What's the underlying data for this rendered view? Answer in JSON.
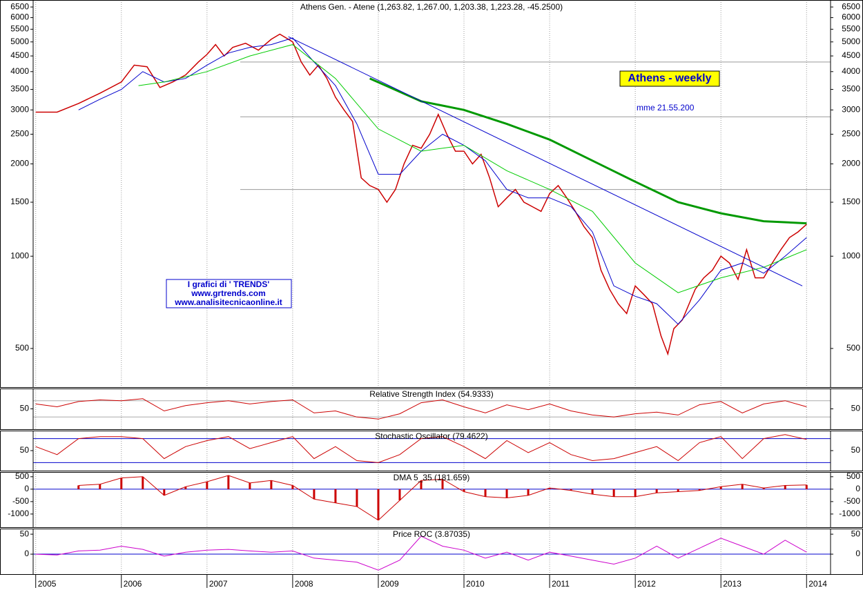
{
  "chart_data": [
    {
      "type": "line",
      "title": "Athens Gen. - Atene (1,263.82, 1,267.00, 1,203.38, 1,223.28, -45.2500)",
      "log_scale": true,
      "ylim": [
        374,
        6850
      ],
      "yticks": [
        500,
        1000,
        1500,
        2000,
        2500,
        3000,
        3500,
        4000,
        4500,
        5000,
        5500,
        6000,
        6500
      ],
      "xlim": [
        2004.97,
        2014.28
      ],
      "xticks": [
        2005,
        2006,
        2007,
        2008,
        2009,
        2010,
        2011,
        2012,
        2013,
        2014
      ],
      "hlines": [
        4300,
        2850,
        1650
      ],
      "annotations": [
        "Athens - weekly",
        "mme 21.55.200",
        "I grafici di ' TRENDS'",
        "www.grtrends.com",
        "www.analisitecnicaonline.it"
      ],
      "series": [
        {
          "color": "#cc0000",
          "x": [
            2005.0,
            2005.25,
            2005.5,
            2005.75,
            2006.0,
            2006.15,
            2006.3,
            2006.45,
            2006.6,
            2006.75,
            2006.9,
            2007.0,
            2007.1,
            2007.2,
            2007.3,
            2007.45,
            2007.6,
            2007.75,
            2007.85,
            2008.0,
            2008.1,
            2008.2,
            2008.3,
            2008.4,
            2008.5,
            2008.6,
            2008.7,
            2008.8,
            2008.9,
            2009.0,
            2009.1,
            2009.2,
            2009.3,
            2009.4,
            2009.5,
            2009.6,
            2009.7,
            2009.8,
            2009.9,
            2010.0,
            2010.1,
            2010.2,
            2010.3,
            2010.4,
            2010.5,
            2010.6,
            2010.7,
            2010.8,
            2010.9,
            2011.0,
            2011.1,
            2011.2,
            2011.3,
            2011.4,
            2011.5,
            2011.6,
            2011.7,
            2011.8,
            2011.9,
            2012.0,
            2012.1,
            2012.2,
            2012.3,
            2012.38,
            2012.45,
            2012.55,
            2012.7,
            2012.8,
            2012.9,
            2013.0,
            2013.1,
            2013.2,
            2013.3,
            2013.4,
            2013.5,
            2013.6,
            2013.7,
            2013.8,
            2013.9,
            2014.0
          ],
          "values": [
            2950,
            2950,
            3150,
            3400,
            3700,
            4200,
            4150,
            3550,
            3700,
            3900,
            4300,
            4550,
            4900,
            4500,
            4800,
            4950,
            4700,
            5100,
            5300,
            5000,
            4300,
            3900,
            4200,
            3800,
            3300,
            3000,
            2750,
            1800,
            1700,
            1650,
            1500,
            1650,
            2000,
            2300,
            2250,
            2500,
            2900,
            2500,
            2200,
            2200,
            2000,
            2150,
            1800,
            1450,
            1550,
            1650,
            1500,
            1450,
            1400,
            1600,
            1700,
            1550,
            1400,
            1250,
            1150,
            900,
            780,
            700,
            650,
            800,
            750,
            700,
            550,
            480,
            580,
            620,
            780,
            850,
            900,
            1000,
            950,
            840,
            1050,
            850,
            850,
            950,
            1050,
            1150,
            1200,
            1270
          ]
        },
        {
          "color": "#0000cc",
          "x": [
            2005.5,
            2005.75,
            2006.0,
            2006.25,
            2006.5,
            2006.75,
            2007.0,
            2007.25,
            2007.5,
            2007.75,
            2008.0,
            2008.25,
            2008.5,
            2008.75,
            2009.0,
            2009.25,
            2009.5,
            2009.75,
            2010.0,
            2010.25,
            2010.5,
            2010.75,
            2011.0,
            2011.25,
            2011.5,
            2011.75,
            2012.0,
            2012.25,
            2012.5,
            2012.75,
            2013.0,
            2013.25,
            2013.5,
            2013.75,
            2014.0
          ],
          "values": [
            3000,
            3250,
            3500,
            4000,
            3700,
            3800,
            4200,
            4600,
            4800,
            4900,
            5150,
            4300,
            3600,
            2700,
            1850,
            1850,
            2200,
            2500,
            2300,
            2050,
            1650,
            1550,
            1550,
            1450,
            1200,
            800,
            740,
            700,
            600,
            720,
            900,
            950,
            880,
            1000,
            1150
          ]
        },
        {
          "color": "#00cc00",
          "x": [
            2006.2,
            2006.5,
            2007.0,
            2007.5,
            2008.0,
            2008.5,
            2009.0,
            2009.5,
            2010.0,
            2010.5,
            2011.0,
            2011.5,
            2012.0,
            2012.5,
            2013.0,
            2013.5,
            2014.0
          ],
          "values": [
            3600,
            3700,
            4000,
            4500,
            4900,
            3800,
            2600,
            2200,
            2300,
            1900,
            1650,
            1400,
            950,
            760,
            850,
            920,
            1050
          ]
        },
        {
          "color": "#009900",
          "x": [
            2008.9,
            2009.5,
            2010.0,
            2010.5,
            2011.0,
            2011.5,
            2012.0,
            2012.5,
            2013.0,
            2013.5,
            2014.0
          ],
          "values": [
            3800,
            3200,
            3000,
            2700,
            2400,
            2050,
            1750,
            1500,
            1380,
            1300,
            1280
          ]
        },
        {
          "color": "#0000cc",
          "x": [
            2007.95,
            2013.95
          ],
          "values": [
            5200,
            800
          ]
        }
      ]
    },
    {
      "type": "line",
      "title": "Relative Strength Index (54.9333)",
      "ylim": [
        0,
        100
      ],
      "yticks": [
        50
      ],
      "hlines": [
        70,
        30
      ],
      "hline_color": "#aaaaaa",
      "series": [
        {
          "color": "#cc0000",
          "x": [
            2005.0,
            2005.25,
            2005.5,
            2005.75,
            2006.0,
            2006.25,
            2006.5,
            2006.75,
            2007.0,
            2007.25,
            2007.5,
            2007.75,
            2008.0,
            2008.25,
            2008.5,
            2008.75,
            2009.0,
            2009.25,
            2009.5,
            2009.75,
            2010.0,
            2010.25,
            2010.5,
            2010.75,
            2011.0,
            2011.25,
            2011.5,
            2011.75,
            2012.0,
            2012.25,
            2012.5,
            2012.75,
            2013.0,
            2013.25,
            2013.5,
            2013.75,
            2014.0
          ],
          "values": [
            62,
            55,
            68,
            72,
            70,
            75,
            45,
            58,
            65,
            70,
            62,
            68,
            72,
            40,
            45,
            30,
            25,
            38,
            65,
            72,
            55,
            40,
            60,
            48,
            62,
            45,
            35,
            30,
            38,
            42,
            35,
            60,
            68,
            40,
            62,
            70,
            55
          ]
        }
      ]
    },
    {
      "type": "line",
      "title": "Stochastic Oscillator (79.4622)",
      "ylim": [
        0,
        100
      ],
      "yticks": [
        50
      ],
      "hlines": [
        80,
        20
      ],
      "hline_color": "#0000cc",
      "series": [
        {
          "color": "#cc0000",
          "x": [
            2005.0,
            2005.25,
            2005.5,
            2005.75,
            2006.0,
            2006.25,
            2006.5,
            2006.75,
            2007.0,
            2007.25,
            2007.5,
            2007.75,
            2008.0,
            2008.25,
            2008.5,
            2008.75,
            2009.0,
            2009.25,
            2009.5,
            2009.75,
            2010.0,
            2010.25,
            2010.5,
            2010.75,
            2011.0,
            2011.25,
            2011.5,
            2011.75,
            2012.0,
            2012.25,
            2012.5,
            2012.75,
            2013.0,
            2013.25,
            2013.5,
            2013.75,
            2014.0
          ],
          "values": [
            60,
            40,
            80,
            85,
            85,
            80,
            30,
            60,
            75,
            85,
            55,
            70,
            85,
            30,
            60,
            25,
            20,
            40,
            80,
            85,
            60,
            30,
            75,
            45,
            70,
            40,
            25,
            30,
            45,
            60,
            25,
            70,
            85,
            30,
            80,
            90,
            78
          ]
        }
      ]
    },
    {
      "type": "bar",
      "title": "DMA 5_35 (181.659)",
      "ylim": [
        -1530,
        690
      ],
      "yticks": [
        500,
        0,
        -500,
        -1000
      ],
      "hlines": [
        0
      ],
      "hline_color": "#0000cc",
      "series": [
        {
          "color": "#cc0000",
          "x": [
            2005.0,
            2005.25,
            2005.5,
            2005.75,
            2006.0,
            2006.25,
            2006.5,
            2006.75,
            2007.0,
            2007.25,
            2007.5,
            2007.75,
            2008.0,
            2008.25,
            2008.5,
            2008.75,
            2009.0,
            2009.25,
            2009.5,
            2009.75,
            2010.0,
            2010.25,
            2010.5,
            2010.75,
            2011.0,
            2011.25,
            2011.5,
            2011.75,
            2012.0,
            2012.25,
            2012.5,
            2012.75,
            2013.0,
            2013.25,
            2013.5,
            2013.75,
            2014.0
          ],
          "values": [
            null,
            null,
            150,
            200,
            450,
            500,
            -250,
            100,
            300,
            550,
            250,
            350,
            150,
            -400,
            -550,
            -700,
            -1250,
            -450,
            350,
            400,
            -100,
            -300,
            -350,
            -250,
            50,
            -50,
            -200,
            -300,
            -300,
            -150,
            -100,
            -50,
            100,
            200,
            50,
            150,
            170
          ]
        }
      ]
    },
    {
      "type": "line",
      "title": "Price ROC (3.87035)",
      "ylim": [
        -50,
        64
      ],
      "yticks": [
        50,
        0
      ],
      "hlines": [
        0
      ],
      "hline_color": "#0000cc",
      "series": [
        {
          "color": "#cc00cc",
          "x": [
            2005.0,
            2005.25,
            2005.5,
            2005.75,
            2006.0,
            2006.25,
            2006.5,
            2006.75,
            2007.0,
            2007.25,
            2007.5,
            2007.75,
            2008.0,
            2008.25,
            2008.5,
            2008.75,
            2009.0,
            2009.25,
            2009.5,
            2009.75,
            2010.0,
            2010.25,
            2010.5,
            2010.75,
            2011.0,
            2011.25,
            2011.5,
            2011.75,
            2012.0,
            2012.25,
            2012.5,
            2012.75,
            2013.0,
            2013.25,
            2013.5,
            2013.75,
            2014.0
          ],
          "values": [
            0,
            -2,
            8,
            10,
            20,
            12,
            -5,
            5,
            10,
            12,
            8,
            5,
            8,
            -10,
            -15,
            -20,
            -40,
            -15,
            45,
            20,
            10,
            -10,
            5,
            -15,
            5,
            -5,
            -15,
            -25,
            -10,
            20,
            -10,
            15,
            40,
            20,
            0,
            35,
            5
          ]
        }
      ]
    }
  ]
}
